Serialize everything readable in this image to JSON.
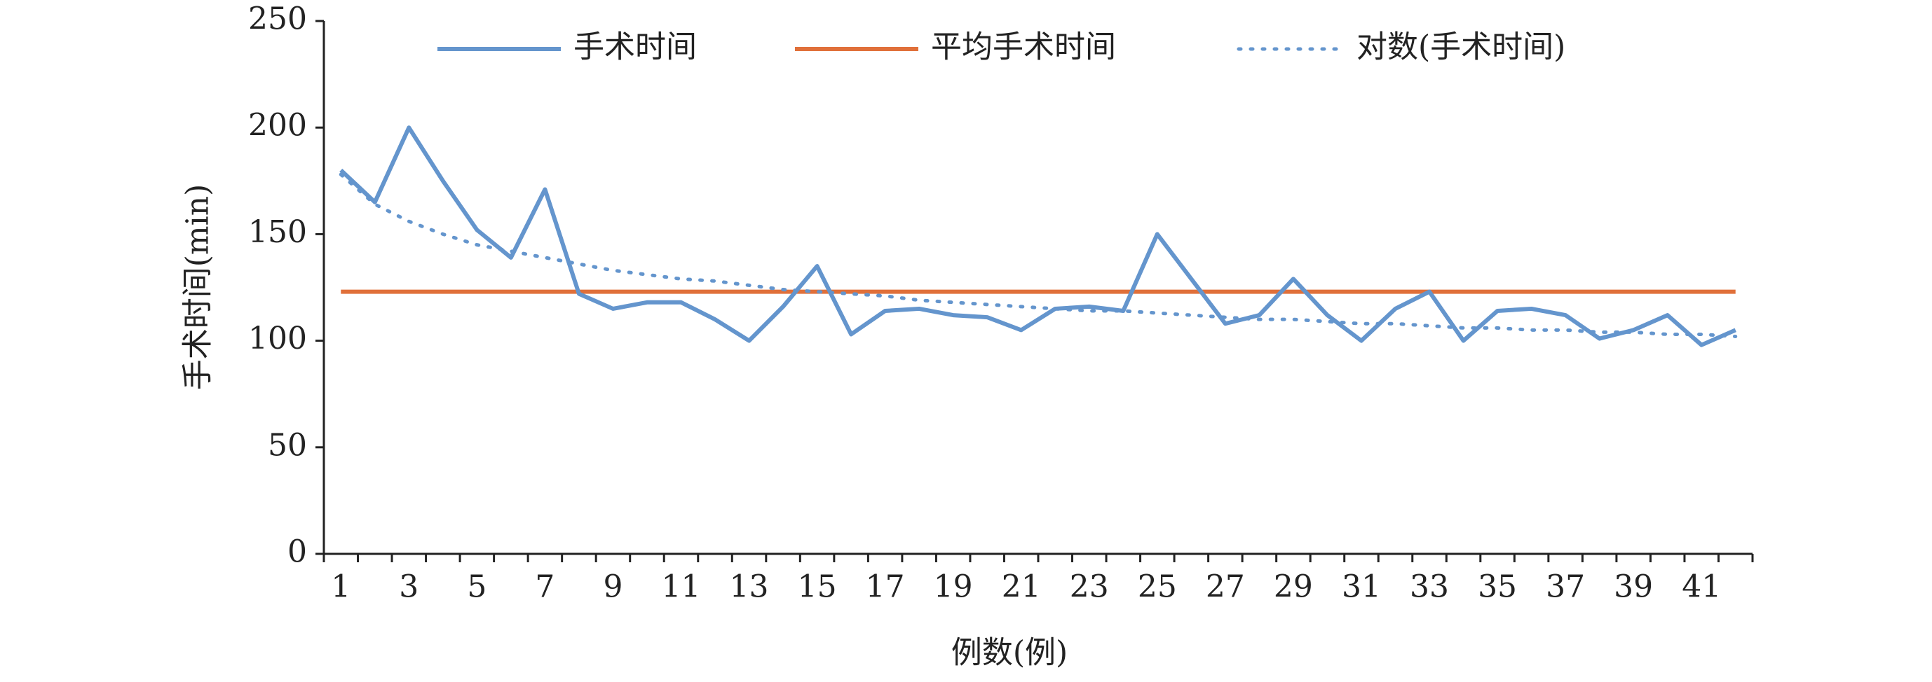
{
  "chart_data": {
    "type": "line",
    "xlabel": "例数(例)",
    "ylabel": "手术时间(min)",
    "categories": [
      "1",
      null,
      "3",
      null,
      "5",
      null,
      "7",
      null,
      "9",
      null,
      "11",
      null,
      "13",
      null,
      "15",
      null,
      "17",
      null,
      "19",
      null,
      "21",
      null,
      "23",
      null,
      "25",
      null,
      "27",
      null,
      "29",
      null,
      "31",
      null,
      "33",
      null,
      "35",
      null,
      "37",
      null,
      "39",
      null,
      "41",
      null
    ],
    "series": [
      {
        "name": "手术时间",
        "color": "#6495cd",
        "style": "solid",
        "values": [
          180,
          165,
          200,
          175,
          152,
          139,
          171,
          122,
          115,
          118,
          118,
          110,
          100,
          116,
          135,
          103,
          114,
          115,
          112,
          111,
          105,
          115,
          116,
          114,
          150,
          129,
          108,
          112,
          129,
          112,
          100,
          115,
          123,
          100,
          114,
          115,
          112,
          101,
          105,
          112,
          98,
          105
        ]
      },
      {
        "name": "平均手术时间",
        "color": "#e0703a",
        "style": "solid",
        "values": [
          123,
          123,
          123,
          123,
          123,
          123,
          123,
          123,
          123,
          123,
          123,
          123,
          123,
          123,
          123,
          123,
          123,
          123,
          123,
          123,
          123,
          123,
          123,
          123,
          123,
          123,
          123,
          123,
          123,
          123,
          123,
          123,
          123,
          123,
          123,
          123,
          123,
          123,
          123,
          123,
          123,
          123
        ]
      },
      {
        "name": "对数(手术时间)",
        "color": "#6495cd",
        "style": "dotted",
        "values": [
          178,
          164,
          156,
          150,
          145,
          142,
          139,
          136,
          133,
          131,
          129,
          128,
          126,
          124,
          123,
          122,
          121,
          119,
          118,
          117,
          116,
          115,
          114,
          114,
          113,
          112,
          111,
          110,
          110,
          109,
          108,
          108,
          107,
          106,
          106,
          105,
          105,
          104,
          104,
          103,
          103,
          102
        ]
      }
    ],
    "ylim": [
      0,
      250
    ],
    "yticks": [
      0,
      50,
      100,
      150,
      200,
      250
    ]
  }
}
